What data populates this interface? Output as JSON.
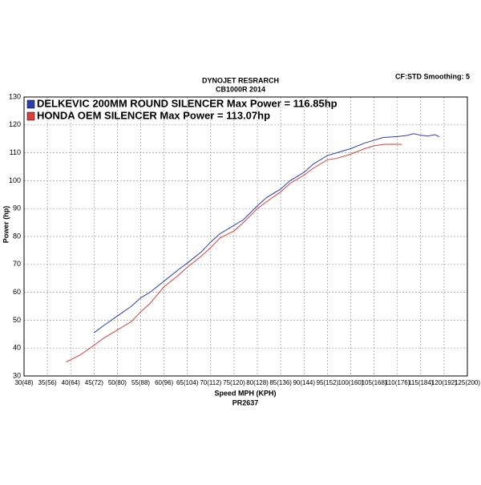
{
  "chart_data": {
    "type": "line",
    "title": "DYNOJET RESRARCH",
    "subtitle": "CB1000R 2014",
    "corner_note": "CF:STD Smoothing: 5",
    "x_label": "Speed MPH (KPH)",
    "y_label": "Power (hp)",
    "footer": "PR2637",
    "xlim": [
      30,
      125
    ],
    "ylim": [
      30,
      130
    ],
    "xticks": [
      {
        "value": 30,
        "label": "30(48)"
      },
      {
        "value": 35,
        "label": "35(56)"
      },
      {
        "value": 40,
        "label": "40(64)"
      },
      {
        "value": 45,
        "label": "45(72)"
      },
      {
        "value": 50,
        "label": "50(80)"
      },
      {
        "value": 55,
        "label": "55(88)"
      },
      {
        "value": 60,
        "label": "60(96)"
      },
      {
        "value": 65,
        "label": "65(104)"
      },
      {
        "value": 70,
        "label": "70(112)"
      },
      {
        "value": 75,
        "label": "75(120)"
      },
      {
        "value": 80,
        "label": "80(128)"
      },
      {
        "value": 85,
        "label": "85(136)"
      },
      {
        "value": 90,
        "label": "90(144)"
      },
      {
        "value": 95,
        "label": "95(152)"
      },
      {
        "value": 100,
        "label": "100(160)"
      },
      {
        "value": 105,
        "label": "105(168)"
      },
      {
        "value": 110,
        "label": "110(176)"
      },
      {
        "value": 115,
        "label": "115(184)"
      },
      {
        "value": 120,
        "label": "120(192)"
      },
      {
        "value": 125,
        "label": "125(200)"
      }
    ],
    "yticks": [
      30,
      40,
      50,
      60,
      70,
      80,
      90,
      100,
      110,
      120,
      130
    ],
    "grid": true,
    "series": [
      {
        "name": "DELKEVIC 200MM ROUND SILENCER Max Power = 116.85hp",
        "color": "#2a3fb0",
        "x": [
          45,
          47,
          50,
          53,
          55,
          57,
          60,
          63,
          65,
          68,
          70,
          72,
          75,
          77,
          80,
          82,
          85,
          87,
          90,
          92,
          95,
          97,
          100,
          103,
          105,
          107,
          110,
          112,
          113.5,
          115,
          116.5,
          118,
          119
        ],
        "values": [
          45.5,
          48,
          51.5,
          55,
          58,
          60,
          64,
          68,
          70.5,
          74.5,
          78,
          81,
          84,
          86,
          91,
          94,
          97,
          100,
          103,
          106,
          109,
          110,
          111.5,
          113.5,
          114.5,
          115.5,
          115.8,
          116.2,
          116.85,
          116.3,
          116,
          116.5,
          115.8
        ]
      },
      {
        "name": "HONDA OEM SILENCER Max Power = 113.07hp",
        "color": "#d9413a",
        "x": [
          39,
          42,
          45,
          47,
          50,
          53,
          55,
          57,
          60,
          63,
          65,
          68,
          70,
          72,
          75,
          77,
          80,
          82,
          85,
          87,
          90,
          92,
          95,
          97,
          100,
          103,
          105,
          107,
          109,
          111
        ],
        "values": [
          35,
          37.5,
          41,
          43.5,
          46.5,
          49.5,
          53,
          56,
          62,
          66,
          69,
          73,
          76,
          79.5,
          82,
          85,
          90,
          92.5,
          96,
          99,
          102,
          104.5,
          107.5,
          108,
          109.5,
          111.5,
          112.5,
          113,
          113.07,
          113
        ]
      }
    ]
  }
}
